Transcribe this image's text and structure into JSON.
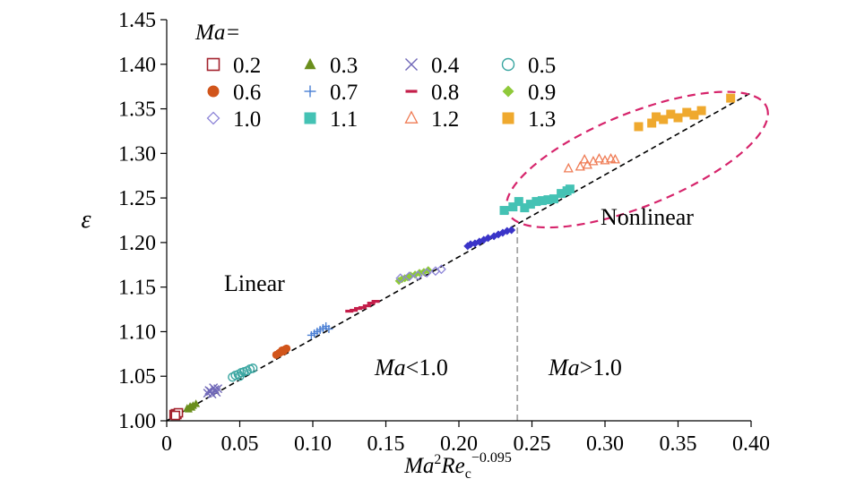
{
  "chart_data": {
    "type": "scatter",
    "title": "",
    "xlabel": {
      "base": "Ma",
      "sup": "2",
      "base2": "Re",
      "sub": "c",
      "sup2": "−0.095"
    },
    "ylabel": "ε",
    "xlim": [
      0,
      0.4
    ],
    "ylim": [
      1.0,
      1.45
    ],
    "x_ticks": [
      "0",
      "0.05",
      "0.10",
      "0.15",
      "0.20",
      "0.25",
      "0.30",
      "0.35",
      "0.40"
    ],
    "y_ticks": [
      "1.00",
      "1.05",
      "1.10",
      "1.15",
      "1.20",
      "1.25",
      "1.30",
      "1.35",
      "1.40",
      "1.45"
    ],
    "legend_title": "Ma=",
    "legend_placement": "top-left",
    "fit_line": {
      "style": "dashed",
      "color": "#000000",
      "from": [
        0.0,
        1.0
      ],
      "to": [
        0.4,
        1.368
      ]
    },
    "divider": {
      "x": 0.24,
      "y_range": [
        1.0,
        1.22
      ],
      "style": "dashed",
      "color": "#a6a6a6"
    },
    "nonlinear_region": {
      "center": [
        0.322,
        1.293
      ],
      "color": "#d6246b"
    },
    "annotations": {
      "linear": "Linear",
      "nonlinear": "Nonlinear",
      "ma_lt": "<1.0",
      "ma_gt": ">1.0",
      "ma_prefix": "Ma"
    },
    "series": [
      {
        "name": "0.2",
        "marker": "square-open",
        "color": "#a3222d",
        "points": [
          [
            0.005,
            1.007
          ],
          [
            0.006,
            1.008
          ],
          [
            0.007,
            1.007
          ],
          [
            0.008,
            1.009
          ],
          [
            0.006,
            1.006
          ]
        ]
      },
      {
        "name": "0.3",
        "marker": "triangle",
        "color": "#6a8e1c",
        "points": [
          [
            0.014,
            1.014
          ],
          [
            0.016,
            1.016
          ],
          [
            0.017,
            1.015
          ],
          [
            0.018,
            1.017
          ],
          [
            0.02,
            1.019
          ],
          [
            0.015,
            1.013
          ]
        ]
      },
      {
        "name": "0.4",
        "marker": "x",
        "color": "#7068b8",
        "points": [
          [
            0.028,
            1.031
          ],
          [
            0.03,
            1.033
          ],
          [
            0.031,
            1.03
          ],
          [
            0.033,
            1.035
          ],
          [
            0.034,
            1.032
          ],
          [
            0.035,
            1.036
          ],
          [
            0.029,
            1.034
          ],
          [
            0.032,
            1.037
          ]
        ]
      },
      {
        "name": "0.5",
        "marker": "circle-open",
        "color": "#3aa6a1",
        "points": [
          [
            0.045,
            1.049
          ],
          [
            0.047,
            1.051
          ],
          [
            0.049,
            1.052
          ],
          [
            0.051,
            1.054
          ],
          [
            0.053,
            1.055
          ],
          [
            0.055,
            1.056
          ],
          [
            0.057,
            1.058
          ],
          [
            0.059,
            1.059
          ],
          [
            0.05,
            1.05
          ]
        ]
      },
      {
        "name": "0.6",
        "marker": "circle",
        "color": "#d1551b",
        "points": [
          [
            0.075,
            1.074
          ],
          [
            0.077,
            1.076
          ],
          [
            0.078,
            1.077
          ],
          [
            0.079,
            1.079
          ],
          [
            0.081,
            1.08
          ],
          [
            0.082,
            1.081
          ],
          [
            0.08,
            1.078
          ]
        ]
      },
      {
        "name": "0.7",
        "marker": "plus",
        "color": "#4a7fd4",
        "points": [
          [
            0.099,
            1.096
          ],
          [
            0.101,
            1.098
          ],
          [
            0.103,
            1.1
          ],
          [
            0.105,
            1.102
          ],
          [
            0.107,
            1.104
          ],
          [
            0.109,
            1.106
          ],
          [
            0.111,
            1.103
          ]
        ]
      },
      {
        "name": "0.8",
        "marker": "dash",
        "color": "#c41e4a",
        "points": [
          [
            0.125,
            1.123
          ],
          [
            0.128,
            1.124
          ],
          [
            0.131,
            1.126
          ],
          [
            0.134,
            1.127
          ],
          [
            0.137,
            1.129
          ],
          [
            0.14,
            1.132
          ],
          [
            0.143,
            1.134
          ]
        ]
      },
      {
        "name": "0.9",
        "marker": "diamond",
        "color": "#8fc93a",
        "points": [
          [
            0.159,
            1.157
          ],
          [
            0.161,
            1.159
          ],
          [
            0.163,
            1.16
          ],
          [
            0.165,
            1.161
          ],
          [
            0.167,
            1.163
          ],
          [
            0.17,
            1.164
          ],
          [
            0.173,
            1.166
          ],
          [
            0.176,
            1.167
          ],
          [
            0.179,
            1.169
          ]
        ]
      },
      {
        "name": "1.0",
        "marker": "diamond-open",
        "color": "#8e86d8",
        "points": [
          [
            0.16,
            1.16
          ],
          [
            0.166,
            1.162
          ],
          [
            0.172,
            1.163
          ],
          [
            0.178,
            1.166
          ],
          [
            0.184,
            1.168
          ],
          [
            0.188,
            1.17
          ]
        ]
      },
      {
        "name": "1.0",
        "marker": "diamond",
        "color": "#3a34c8",
        "legend": false,
        "points": [
          [
            0.206,
            1.196
          ],
          [
            0.208,
            1.198
          ],
          [
            0.211,
            1.199
          ],
          [
            0.214,
            1.201
          ],
          [
            0.217,
            1.203
          ],
          [
            0.22,
            1.205
          ],
          [
            0.224,
            1.207
          ],
          [
            0.227,
            1.209
          ],
          [
            0.23,
            1.211
          ],
          [
            0.233,
            1.213
          ],
          [
            0.236,
            1.214
          ]
        ]
      },
      {
        "name": "1.1",
        "marker": "square",
        "color": "#44c2b4",
        "points": [
          [
            0.231,
            1.236
          ],
          [
            0.237,
            1.24
          ],
          [
            0.241,
            1.246
          ],
          [
            0.245,
            1.239
          ],
          [
            0.249,
            1.243
          ],
          [
            0.253,
            1.246
          ],
          [
            0.257,
            1.247
          ],
          [
            0.261,
            1.248
          ],
          [
            0.265,
            1.249
          ],
          [
            0.27,
            1.255
          ],
          [
            0.274,
            1.258
          ],
          [
            0.276,
            1.26
          ]
        ]
      },
      {
        "name": "1.2",
        "marker": "triangle-open",
        "color": "#ef7b54",
        "points": [
          [
            0.275,
            1.283
          ],
          [
            0.283,
            1.285
          ],
          [
            0.286,
            1.293
          ],
          [
            0.288,
            1.287
          ],
          [
            0.292,
            1.291
          ],
          [
            0.296,
            1.294
          ],
          [
            0.3,
            1.292
          ],
          [
            0.304,
            1.294
          ],
          [
            0.307,
            1.293
          ]
        ]
      },
      {
        "name": "1.3",
        "marker": "square",
        "color": "#efa92e",
        "points": [
          [
            0.323,
            1.33
          ],
          [
            0.332,
            1.334
          ],
          [
            0.335,
            1.341
          ],
          [
            0.34,
            1.338
          ],
          [
            0.345,
            1.344
          ],
          [
            0.35,
            1.34
          ],
          [
            0.356,
            1.346
          ],
          [
            0.361,
            1.343
          ],
          [
            0.366,
            1.348
          ],
          [
            0.386,
            1.362
          ]
        ]
      }
    ]
  }
}
